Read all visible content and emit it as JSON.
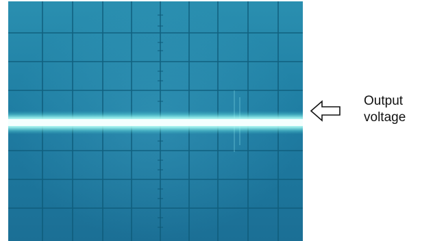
{
  "screen": {
    "background_color": "#1f7ea3",
    "trace_color": "#9dfff2",
    "grid_color": "#0f5f7f"
  },
  "annotation": {
    "icon": "left-arrow-icon",
    "line1": "Output",
    "line2": "voltage"
  }
}
